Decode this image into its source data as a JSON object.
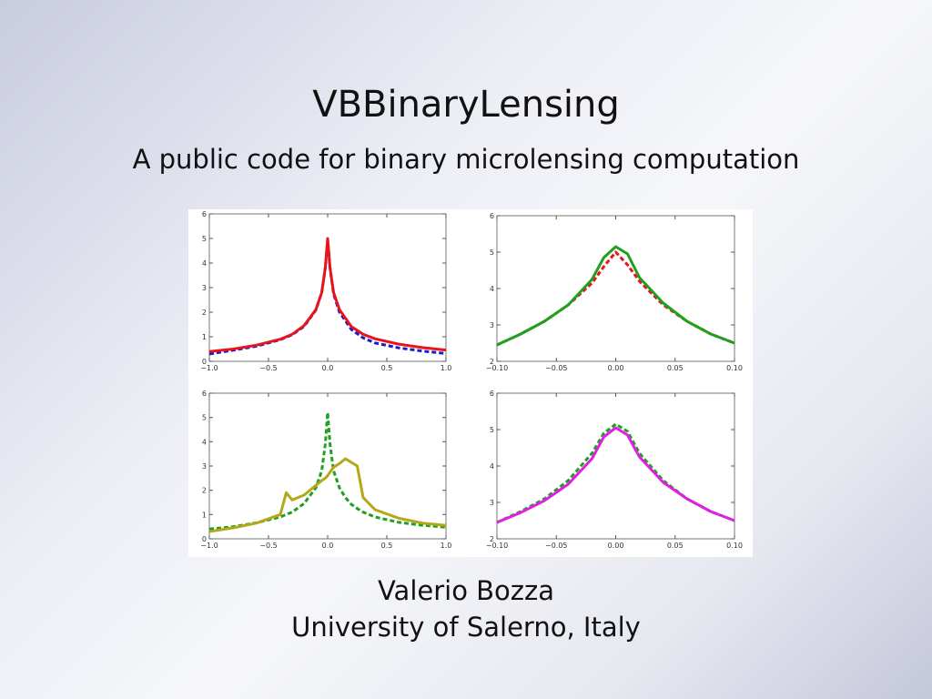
{
  "slide": {
    "title": "VBBinaryLensing",
    "subtitle": "A public code for binary microlensing computation",
    "author": "Valerio Bozza",
    "affiliation": "University of Salerno, Italy"
  },
  "chart_data": [
    {
      "type": "line",
      "x": [
        -1,
        -0.8,
        -0.6,
        -0.4,
        -0.3,
        -0.2,
        -0.1,
        -0.05,
        -0.02,
        0,
        0.02,
        0.05,
        0.1,
        0.2,
        0.3,
        0.4,
        0.6,
        0.8,
        1
      ],
      "series": [
        {
          "color": "#1a1acc",
          "dash": true,
          "values": [
            0.3,
            0.45,
            0.62,
            0.88,
            1.08,
            1.42,
            2.08,
            2.8,
            3.8,
            4.95,
            3.8,
            2.75,
            2.0,
            1.3,
            0.95,
            0.75,
            0.55,
            0.42,
            0.32
          ]
        },
        {
          "color": "#e8141c",
          "dash": false,
          "values": [
            0.4,
            0.5,
            0.66,
            0.9,
            1.1,
            1.45,
            2.1,
            2.8,
            3.8,
            5.0,
            3.8,
            2.8,
            2.1,
            1.42,
            1.1,
            0.92,
            0.7,
            0.56,
            0.46
          ]
        }
      ],
      "xlim": [
        -1,
        1
      ],
      "ylim": [
        0,
        6
      ],
      "xticks": [
        {
          "value": -1,
          "label": "−1.0"
        },
        {
          "value": -0.5,
          "label": "−0.5"
        },
        {
          "value": 0,
          "label": "0.0"
        },
        0.5,
        {
          "value": 1,
          "label": "1.0"
        }
      ],
      "yticks": [
        0,
        1,
        2,
        3,
        4,
        5,
        6
      ]
    },
    {
      "type": "line",
      "x": [
        -0.1,
        -0.08,
        -0.06,
        -0.04,
        -0.02,
        -0.01,
        0,
        0.01,
        0.02,
        0.04,
        0.06,
        0.08,
        0.1
      ],
      "series": [
        {
          "color": "#e8141c",
          "dash": true,
          "values": [
            2.45,
            2.75,
            3.1,
            3.55,
            4.15,
            4.6,
            5.0,
            4.65,
            4.2,
            3.55,
            3.1,
            2.75,
            2.5
          ]
        },
        {
          "color": "#1fa01f",
          "dash": false,
          "values": [
            2.45,
            2.75,
            3.1,
            3.55,
            4.25,
            4.85,
            5.15,
            4.95,
            4.3,
            3.6,
            3.1,
            2.75,
            2.5
          ]
        }
      ],
      "xlim": [
        -0.1,
        0.1
      ],
      "ylim": [
        2,
        6
      ],
      "xticks": [
        {
          "value": -0.1,
          "label": "−0.10"
        },
        {
          "value": -0.05,
          "label": "−0.05"
        },
        {
          "value": 0,
          "label": "0.00"
        },
        0.05,
        {
          "value": 0.1,
          "label": "0.10"
        }
      ],
      "yticks": [
        2,
        3,
        4,
        5,
        6
      ]
    },
    {
      "type": "line",
      "x": [
        -1,
        -0.8,
        -0.6,
        -0.4,
        -0.35,
        -0.3,
        -0.2,
        -0.1,
        -0.05,
        -0.02,
        0,
        0.02,
        0.05,
        0.1,
        0.15,
        0.2,
        0.25,
        0.3,
        0.4,
        0.6,
        0.8,
        1
      ],
      "series": [
        {
          "color": "#1fa01f",
          "dash": true,
          "values": [
            0.4,
            0.5,
            0.66,
            0.9,
            1.0,
            1.1,
            1.45,
            2.1,
            2.8,
            3.9,
            5.2,
            3.9,
            2.8,
            2.1,
            1.7,
            1.42,
            1.25,
            1.1,
            0.9,
            0.68,
            0.56,
            0.48
          ]
        },
        {
          "color": "#b4a818",
          "dash": false,
          "values": [
            0.3,
            0.45,
            0.65,
            1.0,
            1.9,
            1.6,
            1.8,
            2.2,
            2.4,
            2.5,
            2.6,
            2.75,
            2.95,
            3.1,
            3.3,
            3.15,
            3.0,
            1.7,
            1.2,
            0.85,
            0.65,
            0.55
          ]
        }
      ],
      "xlim": [
        -1,
        1
      ],
      "ylim": [
        0,
        6
      ],
      "xticks": [
        {
          "value": -1,
          "label": "−1.0"
        },
        {
          "value": -0.5,
          "label": "−0.5"
        },
        {
          "value": 0,
          "label": "0.0"
        },
        0.5,
        {
          "value": 1,
          "label": "1.0"
        }
      ],
      "yticks": [
        0,
        1,
        2,
        3,
        4,
        5,
        6
      ]
    },
    {
      "type": "line",
      "x": [
        -0.1,
        -0.08,
        -0.06,
        -0.04,
        -0.02,
        -0.01,
        0,
        0.01,
        0.02,
        0.04,
        0.06,
        0.08,
        0.1
      ],
      "series": [
        {
          "color": "#1fa01f",
          "dash": true,
          "values": [
            2.45,
            2.75,
            3.1,
            3.6,
            4.35,
            4.9,
            5.15,
            4.95,
            4.35,
            3.6,
            3.1,
            2.75,
            2.5
          ]
        },
        {
          "color": "#e020e0",
          "dash": false,
          "values": [
            2.45,
            2.72,
            3.05,
            3.5,
            4.2,
            4.8,
            5.05,
            4.85,
            4.25,
            3.55,
            3.1,
            2.75,
            2.5
          ]
        }
      ],
      "xlim": [
        -0.1,
        0.1
      ],
      "ylim": [
        2,
        6
      ],
      "xticks": [
        {
          "value": -0.1,
          "label": "−0.10"
        },
        {
          "value": -0.05,
          "label": "−0.05"
        },
        {
          "value": 0,
          "label": "0.00"
        },
        0.05,
        {
          "value": 0.1,
          "label": "0.10"
        }
      ],
      "yticks": [
        2,
        3,
        4,
        5,
        6
      ]
    }
  ]
}
